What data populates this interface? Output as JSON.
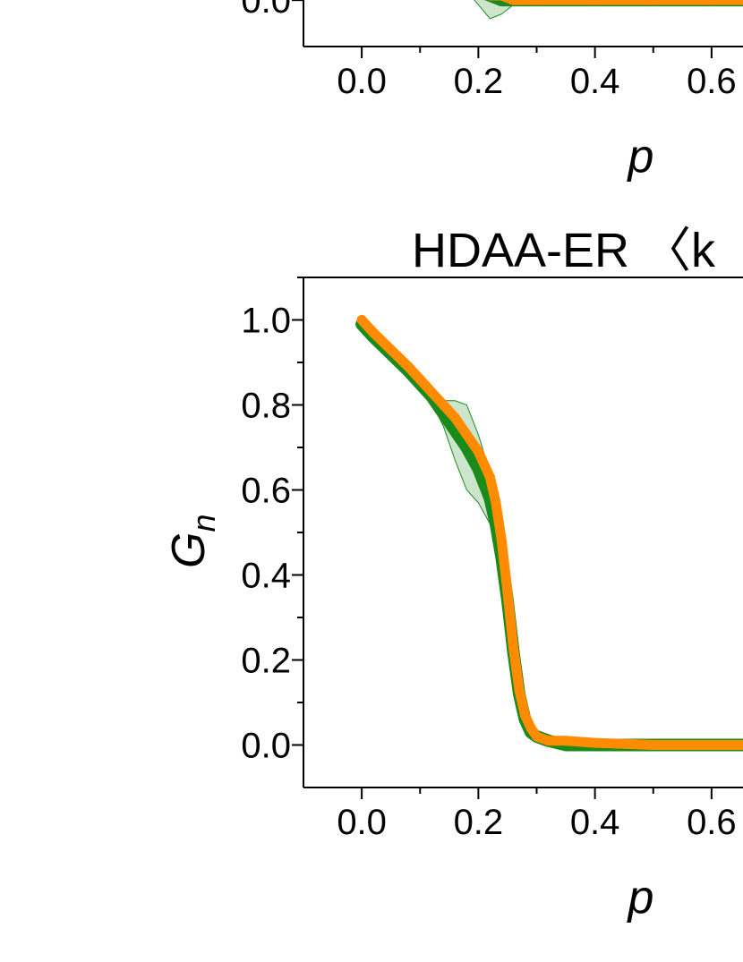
{
  "chart_data": [
    {
      "type": "line",
      "title": "",
      "xlabel": "p",
      "ylabel": "",
      "xlim": [
        -0.1,
        0.7
      ],
      "ylim": [
        -0.1,
        1.1
      ],
      "x_ticks": [
        "0.0",
        "0.2",
        "0.4",
        "0.6"
      ],
      "y_ticks": [
        "0.0"
      ],
      "grid": false,
      "series": [
        {
          "color": "#1a8a1a",
          "x": [
            0.18,
            0.2,
            0.22,
            0.24,
            0.26,
            0.3,
            0.4,
            0.5,
            0.6,
            0.7
          ],
          "values": [
            0.03,
            0.02,
            0.01,
            0.0,
            0.0,
            0.0,
            0.0,
            0.0,
            0.0,
            0.0
          ],
          "band_half_width": [
            0.01,
            0.03,
            0.05,
            0.03,
            0.01,
            0.005,
            0.005,
            0.005,
            0.005,
            0.005
          ]
        },
        {
          "color": "#ff8c00",
          "x": [
            0.18,
            0.2,
            0.22,
            0.24,
            0.26,
            0.3,
            0.4,
            0.5,
            0.6,
            0.7
          ],
          "values": [
            0.03,
            0.02,
            0.01,
            0.01,
            0.0,
            0.0,
            0.0,
            0.0,
            0.0,
            0.0
          ]
        }
      ]
    },
    {
      "type": "line",
      "title": "HDAA-ER 〈k",
      "xlabel": "p",
      "ylabel": "G_n",
      "ylabel_main": "G",
      "ylabel_sub": "n",
      "xlim": [
        -0.1,
        0.7
      ],
      "ylim": [
        -0.1,
        1.1
      ],
      "x_ticks": [
        "0.0",
        "0.2",
        "0.4",
        "0.6"
      ],
      "y_ticks": [
        "0.0",
        "0.2",
        "0.4",
        "0.6",
        "0.8",
        "1.0"
      ],
      "grid": false,
      "series": [
        {
          "color": "#1a8a1a",
          "x": [
            0.0,
            0.02,
            0.05,
            0.08,
            0.1,
            0.12,
            0.14,
            0.16,
            0.18,
            0.2,
            0.22,
            0.23,
            0.24,
            0.25,
            0.26,
            0.27,
            0.28,
            0.29,
            0.3,
            0.32,
            0.35,
            0.4,
            0.5,
            0.6,
            0.7
          ],
          "values": [
            0.99,
            0.96,
            0.92,
            0.88,
            0.85,
            0.82,
            0.78,
            0.74,
            0.7,
            0.65,
            0.58,
            0.52,
            0.44,
            0.34,
            0.22,
            0.12,
            0.06,
            0.03,
            0.02,
            0.01,
            0.0,
            0.0,
            0.0,
            0.0,
            0.0
          ],
          "band_half_width": [
            0.005,
            0.005,
            0.006,
            0.008,
            0.01,
            0.015,
            0.03,
            0.07,
            0.1,
            0.08,
            0.06,
            0.05,
            0.04,
            0.03,
            0.03,
            0.02,
            0.015,
            0.01,
            0.01,
            0.005,
            0.005,
            0.005,
            0.005,
            0.005,
            0.005
          ]
        },
        {
          "color": "#ff8c00",
          "x": [
            0.0,
            0.02,
            0.05,
            0.08,
            0.1,
            0.12,
            0.14,
            0.16,
            0.18,
            0.2,
            0.22,
            0.23,
            0.24,
            0.25,
            0.26,
            0.27,
            0.28,
            0.29,
            0.3,
            0.32,
            0.35,
            0.4,
            0.5,
            0.6,
            0.7
          ],
          "values": [
            1.0,
            0.97,
            0.93,
            0.89,
            0.86,
            0.83,
            0.8,
            0.77,
            0.73,
            0.69,
            0.63,
            0.57,
            0.48,
            0.36,
            0.23,
            0.13,
            0.07,
            0.04,
            0.02,
            0.01,
            0.01,
            0.005,
            0.0,
            0.0,
            0.0
          ]
        }
      ]
    }
  ]
}
